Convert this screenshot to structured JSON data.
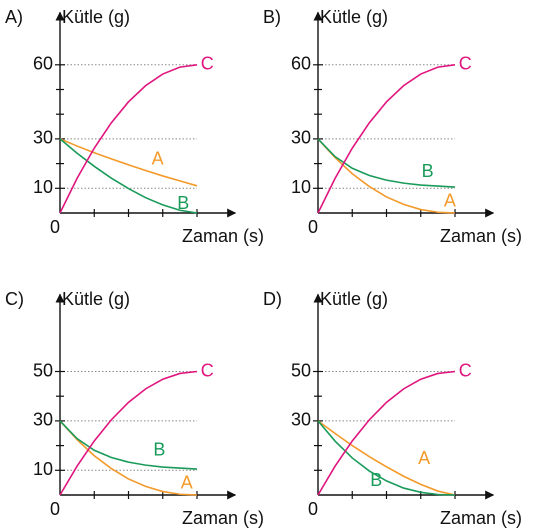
{
  "chart_data": [
    {
      "type": "line",
      "title": "A)",
      "ylabel": "Kütle (g)",
      "xlabel": "Zaman (s)",
      "x": [
        0,
        0.5,
        1,
        1.5,
        2,
        2.5,
        3,
        3.5,
        4
      ],
      "xlim": [
        0,
        5
      ],
      "ylim": [
        0,
        80
      ],
      "yticks": [
        0,
        10,
        30,
        60
      ],
      "minor_yticks": [
        20,
        40,
        50
      ],
      "minor_xticks": [
        1,
        2,
        3,
        4
      ],
      "grid": true,
      "series": [
        {
          "name": "A",
          "color": "#f39a2b",
          "values": [
            30,
            27.1,
            24.4,
            21.9,
            19.5,
            17.2,
            15.0,
            13.0,
            11.0
          ]
        },
        {
          "name": "B",
          "color": "#1a9b5a",
          "values": [
            30,
            24.2,
            18.9,
            14.1,
            9.9,
            6.2,
            3.3,
            1.1,
            0
          ]
        },
        {
          "name": "C",
          "color": "#e0157e",
          "values": [
            0,
            14.06,
            26.25,
            36.56,
            45,
            51.56,
            56.25,
            59.06,
            60
          ]
        }
      ]
    },
    {
      "type": "line",
      "title": "B)",
      "ylabel": "Kütle (g)",
      "xlabel": "Zaman (s)",
      "x": [
        0,
        0.5,
        1,
        1.5,
        2,
        2.5,
        3,
        3.5,
        4
      ],
      "xlim": [
        0,
        5
      ],
      "ylim": [
        0,
        80
      ],
      "yticks": [
        0,
        10,
        30,
        60
      ],
      "minor_yticks": [
        20,
        40,
        50
      ],
      "minor_xticks": [
        1,
        2,
        3,
        4
      ],
      "grid": true,
      "series": [
        {
          "name": "A",
          "color": "#f39a2b",
          "values": [
            30,
            22.4,
            15.9,
            10.7,
            6.5,
            3.5,
            1.4,
            0.3,
            0
          ]
        },
        {
          "name": "B",
          "color": "#1a9b5a",
          "values": [
            30,
            22.8,
            18.1,
            15.2,
            13.3,
            12.1,
            11.3,
            10.9,
            10.5
          ]
        },
        {
          "name": "C",
          "color": "#e0157e",
          "values": [
            0,
            14.06,
            26.25,
            36.56,
            45,
            51.56,
            56.25,
            59.06,
            60
          ]
        }
      ]
    },
    {
      "type": "line",
      "title": "C)",
      "ylabel": "Kütle (g)",
      "xlabel": "Zaman (s)",
      "x": [
        0,
        0.5,
        1,
        1.5,
        2,
        2.5,
        3,
        3.5,
        4
      ],
      "xlim": [
        0,
        5
      ],
      "ylim": [
        0,
        80
      ],
      "yticks": [
        0,
        10,
        30,
        50
      ],
      "minor_yticks": [
        20,
        40
      ],
      "minor_xticks": [
        1,
        2,
        3,
        4
      ],
      "grid": true,
      "series": [
        {
          "name": "A",
          "color": "#f39a2b",
          "values": [
            30,
            22.4,
            15.9,
            10.7,
            6.5,
            3.5,
            1.4,
            0.3,
            0
          ]
        },
        {
          "name": "B",
          "color": "#1a9b5a",
          "values": [
            30,
            22.8,
            18.1,
            15.2,
            13.3,
            12.1,
            11.3,
            10.9,
            10.5
          ]
        },
        {
          "name": "C",
          "color": "#e0157e",
          "values": [
            0,
            11.72,
            21.88,
            30.47,
            37.5,
            42.97,
            46.88,
            49.22,
            50
          ]
        }
      ]
    },
    {
      "type": "line",
      "title": "D)",
      "ylabel": "Kütle (g)",
      "xlabel": "Zaman (s)",
      "x": [
        0,
        0.5,
        1,
        1.5,
        2,
        2.5,
        3,
        3.5,
        4
      ],
      "xlim": [
        0,
        5
      ],
      "ylim": [
        0,
        80
      ],
      "yticks": [
        0,
        30,
        50
      ],
      "minor_yticks": [
        10,
        20,
        40
      ],
      "minor_xticks": [
        1,
        2,
        3,
        4
      ],
      "grid": true,
      "series": [
        {
          "name": "A",
          "color": "#f39a2b",
          "values": [
            30,
            24.9,
            20.0,
            15.5,
            11.4,
            7.6,
            4.3,
            1.6,
            0
          ]
        },
        {
          "name": "B",
          "color": "#1a9b5a",
          "values": [
            30,
            21.8,
            15.0,
            9.7,
            5.7,
            2.8,
            1.1,
            0.2,
            0
          ]
        },
        {
          "name": "C",
          "color": "#e0157e",
          "values": [
            0,
            11.72,
            21.88,
            30.47,
            37.5,
            42.97,
            46.88,
            49.22,
            50
          ]
        }
      ]
    }
  ]
}
